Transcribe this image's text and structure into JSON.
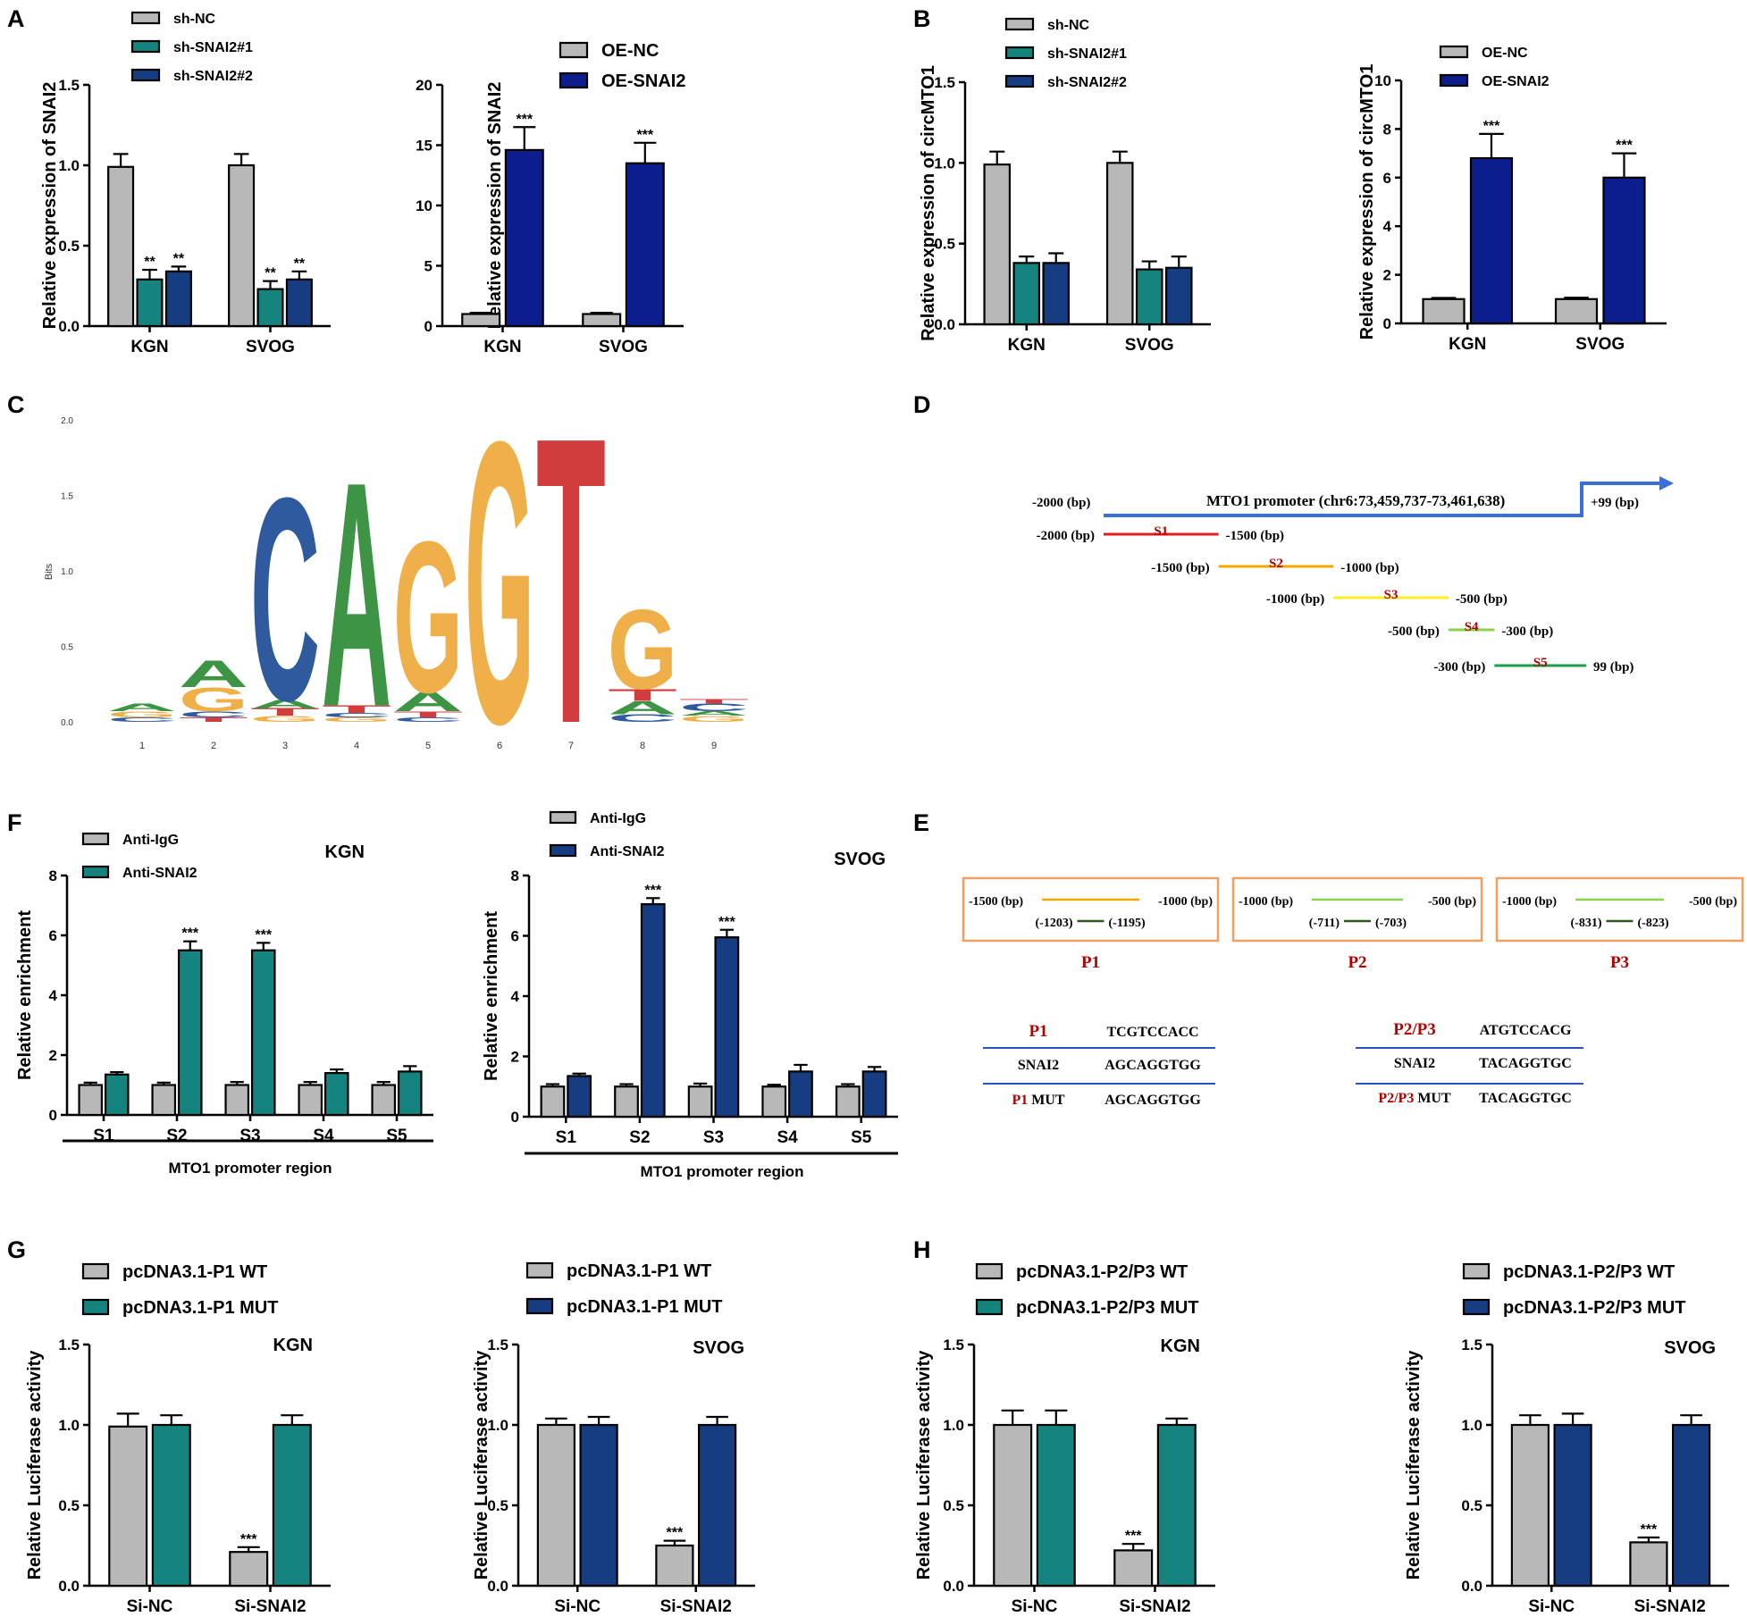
{
  "colors": {
    "gray": "#b8b8b8",
    "teal": "#15847e",
    "navy": "#163d82",
    "deepnavy": "#0c1e8e",
    "axis": "#000000",
    "red_label": "#b00000",
    "motif_A": "#3d9445",
    "motif_C": "#2f5b9e",
    "motif_G": "#efb04a",
    "motif_T": "#d13c3c",
    "seg_S1": "#e02020",
    "seg_S2": "#f2a900",
    "seg_S3": "#ffee22",
    "seg_S4": "#8bd34a",
    "seg_S5": "#1a9e4a",
    "arrow": "#3a6fd8",
    "box_border": "#f0a060",
    "line_blue": "#2a50c8",
    "line_dark": "#2c5a1c"
  },
  "panel_letters": {
    "a": "A",
    "b": "B",
    "c": "C",
    "d": "D",
    "e": "E",
    "f": "F",
    "g": "G",
    "h": "H"
  },
  "chart_data": [
    {
      "id": "A1",
      "type": "bar",
      "title": "",
      "xlabel": "",
      "ylabel": "Relative expression of SNAI2",
      "categories": [
        "KGN",
        "SVOG"
      ],
      "ylim": [
        0,
        1.5
      ],
      "yticks": [
        "0.0",
        "0.5",
        "1.0",
        "1.5"
      ],
      "series": [
        {
          "name": "sh-NC",
          "color": "gray",
          "values": [
            0.99,
            1.0
          ],
          "err": [
            0.08,
            0.07
          ]
        },
        {
          "name": "sh-SNAI2#1",
          "color": "teal",
          "values": [
            0.29,
            0.23
          ],
          "err": [
            0.06,
            0.05
          ],
          "labels": [
            "**",
            "**"
          ]
        },
        {
          "name": "sh-SNAI2#2",
          "color": "navy",
          "values": [
            0.34,
            0.29
          ],
          "err": [
            0.03,
            0.05
          ],
          "labels": [
            "**",
            "**"
          ]
        }
      ]
    },
    {
      "id": "A2",
      "type": "bar",
      "title": "",
      "xlabel": "",
      "ylabel": "Relative expression of SNAI2",
      "categories": [
        "KGN",
        "SVOG"
      ],
      "ylim": [
        0,
        20
      ],
      "yticks": [
        "0",
        "5",
        "10",
        "15",
        "20"
      ],
      "series": [
        {
          "name": "OE-NC",
          "color": "gray",
          "values": [
            1.0,
            1.0
          ],
          "err": [
            0.1,
            0.1
          ]
        },
        {
          "name": "OE-SNAI2",
          "color": "deepnavy",
          "values": [
            14.6,
            13.5
          ],
          "err": [
            1.9,
            1.7
          ],
          "labels": [
            "***",
            "***"
          ]
        }
      ]
    },
    {
      "id": "B1",
      "type": "bar",
      "title": "",
      "xlabel": "",
      "ylabel": "Relative expression of circMTO1",
      "categories": [
        "KGN",
        "SVOG"
      ],
      "ylim": [
        0,
        1.5
      ],
      "yticks": [
        "0.0",
        "0.5",
        "1.0",
        "1.5"
      ],
      "series": [
        {
          "name": "sh-NC",
          "color": "gray",
          "values": [
            0.99,
            1.0
          ],
          "err": [
            0.08,
            0.07
          ]
        },
        {
          "name": "sh-SNAI2#1",
          "color": "teal",
          "values": [
            0.38,
            0.34
          ],
          "err": [
            0.04,
            0.05
          ]
        },
        {
          "name": "sh-SNAI2#2",
          "color": "navy",
          "values": [
            0.38,
            0.35
          ],
          "err": [
            0.06,
            0.07
          ]
        }
      ]
    },
    {
      "id": "B2",
      "type": "bar",
      "title": "",
      "xlabel": "",
      "ylabel": "Relative expression of circMTO1",
      "categories": [
        "KGN",
        "SVOG"
      ],
      "ylim": [
        0,
        10
      ],
      "yticks": [
        "0",
        "2",
        "4",
        "6",
        "8",
        "10"
      ],
      "series": [
        {
          "name": "OE-NC",
          "color": "gray",
          "values": [
            1.0,
            1.0
          ],
          "err": [
            0.05,
            0.06
          ]
        },
        {
          "name": "OE-SNAI2",
          "color": "deepnavy",
          "values": [
            6.8,
            6.0
          ],
          "err": [
            1.0,
            1.0
          ],
          "labels": [
            "***",
            "***"
          ]
        }
      ]
    },
    {
      "id": "F1",
      "type": "bar",
      "title": "KGN",
      "xlabel": "MTO1 promoter region",
      "ylabel": "Relative  enrichment",
      "categories": [
        "S1",
        "S2",
        "S3",
        "S4",
        "S5"
      ],
      "ylim": [
        0,
        8
      ],
      "yticks": [
        "0",
        "2",
        "4",
        "6",
        "8"
      ],
      "series": [
        {
          "name": "Anti-IgG",
          "color": "gray",
          "values": [
            1.0,
            1.0,
            1.0,
            1.0,
            1.0
          ],
          "err": [
            0.08,
            0.08,
            0.1,
            0.1,
            0.1
          ]
        },
        {
          "name": "Anti-SNAI2",
          "color": "teal",
          "values": [
            1.35,
            5.5,
            5.5,
            1.4,
            1.45
          ],
          "err": [
            0.08,
            0.3,
            0.25,
            0.12,
            0.18
          ],
          "labels": [
            "",
            "***",
            "***",
            "",
            ""
          ]
        }
      ]
    },
    {
      "id": "F2",
      "type": "bar",
      "title": "SVOG",
      "xlabel": "MTO1 promoter region",
      "ylabel": "Relative  enrichment",
      "categories": [
        "S1",
        "S2",
        "S3",
        "S4",
        "S5"
      ],
      "ylim": [
        0,
        8
      ],
      "yticks": [
        "0",
        "2",
        "4",
        "6",
        "8"
      ],
      "series": [
        {
          "name": "Anti-IgG",
          "color": "gray",
          "values": [
            1.0,
            1.0,
            1.0,
            1.0,
            1.0
          ],
          "err": [
            0.08,
            0.08,
            0.1,
            0.06,
            0.08
          ]
        },
        {
          "name": "Anti-SNAI2",
          "color": "navy",
          "values": [
            1.35,
            7.05,
            5.95,
            1.5,
            1.5
          ],
          "err": [
            0.08,
            0.2,
            0.25,
            0.22,
            0.15
          ],
          "labels": [
            "",
            "***",
            "***",
            "",
            ""
          ]
        }
      ]
    },
    {
      "id": "G1",
      "type": "bar",
      "title": "KGN",
      "xlabel": "",
      "ylabel": "Relative Luciferase activity",
      "categories": [
        "Si-NC",
        "Si-SNAI2"
      ],
      "ylim": [
        0,
        1.5
      ],
      "yticks": [
        "0.0",
        "0.5",
        "1.0",
        "1.5"
      ],
      "series": [
        {
          "name": "pcDNA3.1-P1 WT",
          "color": "gray",
          "values": [
            0.99,
            0.21
          ],
          "err": [
            0.08,
            0.03
          ],
          "labels": [
            "",
            "***"
          ]
        },
        {
          "name": "pcDNA3.1-P1 MUT",
          "color": "teal",
          "values": [
            1.0,
            1.0
          ],
          "err": [
            0.06,
            0.06
          ]
        }
      ]
    },
    {
      "id": "G2",
      "type": "bar",
      "title": "SVOG",
      "xlabel": "",
      "ylabel": "Relative Luciferase activity",
      "categories": [
        "Si-NC",
        "Si-SNAI2"
      ],
      "ylim": [
        0,
        1.5
      ],
      "yticks": [
        "0.0",
        "0.5",
        "1.0",
        "1.5"
      ],
      "series": [
        {
          "name": "pcDNA3.1-P1 WT",
          "color": "gray",
          "values": [
            1.0,
            0.25
          ],
          "err": [
            0.04,
            0.03
          ],
          "labels": [
            "",
            "***"
          ]
        },
        {
          "name": "pcDNA3.1-P1 MUT",
          "color": "navy",
          "values": [
            1.0,
            1.0
          ],
          "err": [
            0.05,
            0.05
          ]
        }
      ]
    },
    {
      "id": "H1",
      "type": "bar",
      "title": "KGN",
      "xlabel": "",
      "ylabel": "Relative Luciferase activity",
      "categories": [
        "Si-NC",
        "Si-SNAI2"
      ],
      "ylim": [
        0,
        1.5
      ],
      "yticks": [
        "0.0",
        "0.5",
        "1.0",
        "1.5"
      ],
      "series": [
        {
          "name": "pcDNA3.1-P2/P3 WT",
          "color": "gray",
          "values": [
            1.0,
            0.22
          ],
          "err": [
            0.09,
            0.04
          ],
          "labels": [
            "",
            "***"
          ]
        },
        {
          "name": "pcDNA3.1-P2/P3 MUT",
          "color": "teal",
          "values": [
            1.0,
            1.0
          ],
          "err": [
            0.09,
            0.04
          ]
        }
      ]
    },
    {
      "id": "H2",
      "type": "bar",
      "title": "SVOG",
      "xlabel": "",
      "ylabel": "Relative Luciferase activity",
      "categories": [
        "Si-NC",
        "Si-SNAI2"
      ],
      "ylim": [
        0,
        1.5
      ],
      "yticks": [
        "0.0",
        "0.5",
        "1.0",
        "1.5"
      ],
      "series": [
        {
          "name": "pcDNA3.1-P2/P3 WT",
          "color": "gray",
          "values": [
            1.0,
            0.27
          ],
          "err": [
            0.06,
            0.03
          ],
          "labels": [
            "",
            "***"
          ]
        },
        {
          "name": "pcDNA3.1-P2/P3 MUT",
          "color": "navy",
          "values": [
            1.0,
            1.0
          ],
          "err": [
            0.07,
            0.06
          ]
        }
      ]
    }
  ],
  "motif": {
    "ylabel": "Bits",
    "yticks": [
      "0.0",
      "0.5",
      "1.0",
      "1.5",
      "2.0"
    ],
    "ymax": 2.0,
    "positions": [
      "1",
      "2",
      "3",
      "4",
      "5",
      "6",
      "7",
      "8",
      "9"
    ],
    "stacks": [
      [
        {
          "l": "C",
          "h": 0.03
        },
        {
          "l": "G",
          "h": 0.04
        },
        {
          "l": "A",
          "h": 0.05
        }
      ],
      [
        {
          "l": "T",
          "h": 0.03
        },
        {
          "l": "C",
          "h": 0.04
        },
        {
          "l": "G",
          "h": 0.16
        },
        {
          "l": "A",
          "h": 0.18
        }
      ],
      [
        {
          "l": "G",
          "h": 0.04
        },
        {
          "l": "T",
          "h": 0.05
        },
        {
          "l": "A",
          "h": 0.06
        },
        {
          "l": "C",
          "h": 1.38
        }
      ],
      [
        {
          "l": "G",
          "h": 0.03
        },
        {
          "l": "C",
          "h": 0.03
        },
        {
          "l": "T",
          "h": 0.05
        },
        {
          "l": "A",
          "h": 1.53
        }
      ],
      [
        {
          "l": "C",
          "h": 0.03
        },
        {
          "l": "T",
          "h": 0.04
        },
        {
          "l": "A",
          "h": 0.13
        },
        {
          "l": "G",
          "h": 1.03
        }
      ],
      [
        {
          "l": "G",
          "h": 1.92
        }
      ],
      [
        {
          "l": "T",
          "h": 1.95
        }
      ],
      [
        {
          "l": "C",
          "h": 0.05
        },
        {
          "l": "A",
          "h": 0.09
        },
        {
          "l": "T",
          "h": 0.08
        },
        {
          "l": "G",
          "h": 0.54
        }
      ],
      [
        {
          "l": "G",
          "h": 0.04
        },
        {
          "l": "A",
          "h": 0.03
        },
        {
          "l": "C",
          "h": 0.05
        },
        {
          "l": "T",
          "h": 0.03
        }
      ]
    ]
  },
  "promoter": {
    "title": "MTO1 promoter (chr6:73,459,737-73,461,638)",
    "start": "-2000 (bp)",
    "end": "+99 (bp)",
    "segments": [
      {
        "name": "S1",
        "left": "-2000 (bp)",
        "right": "-1500 (bp)",
        "from": -2000,
        "to": -1500,
        "color": "seg_S1"
      },
      {
        "name": "S2",
        "left": "-1500 (bp)",
        "right": "-1000 (bp)",
        "from": -1500,
        "to": -1000,
        "color": "seg_S2"
      },
      {
        "name": "S3",
        "left": "-1000 (bp)",
        "right": "-500 (bp)",
        "from": -1000,
        "to": -500,
        "color": "seg_S3"
      },
      {
        "name": "S4",
        "left": "-500 (bp)",
        "right": "-300 (bp)",
        "from": -500,
        "to": -300,
        "color": "seg_S4"
      },
      {
        "name": "S5",
        "left": "-300 (bp)",
        "right": "99 (bp)",
        "from": -300,
        "to": 99,
        "color": "seg_S5"
      }
    ]
  },
  "binding_sites": [
    {
      "name": "P1",
      "left": "-1500 (bp)",
      "right": "-1000 (bp)",
      "site_left": "(-1203)",
      "site_right": "(-1195)",
      "line": "seg_S2"
    },
    {
      "name": "P2",
      "left": "-1000 (bp)",
      "right": "-500 (bp)",
      "site_left": "(-711)",
      "site_right": "(-703)",
      "line": "seg_S4"
    },
    {
      "name": "P3",
      "left": "-1000 (bp)",
      "right": "-500 (bp)",
      "site_left": "(-831)",
      "site_right": "(-823)",
      "line": "seg_S4"
    }
  ],
  "seq_tables": [
    {
      "rows": [
        {
          "label": "P1",
          "label_red": "P1",
          "label_rest": "",
          "seq": "TCGTCCACC"
        },
        {
          "label": "SNAI2",
          "label_red": "",
          "label_rest": "SNAI2",
          "seq": "AGCAGGTGG"
        },
        {
          "label": "P1 MUT",
          "label_red": "P1",
          "label_rest": " MUT",
          "seq": "AGCAGGTGG"
        }
      ]
    },
    {
      "rows": [
        {
          "label": "P2/P3",
          "label_red": "P2/P3",
          "label_rest": "",
          "seq": "ATGTCCACG"
        },
        {
          "label": "SNAI2",
          "label_red": "",
          "label_rest": "SNAI2",
          "seq": "TACAGGTGC"
        },
        {
          "label": "P2/P3 MUT",
          "label_red": "P2/P3",
          "label_rest": " MUT",
          "seq": "TACAGGTGC"
        }
      ]
    }
  ]
}
